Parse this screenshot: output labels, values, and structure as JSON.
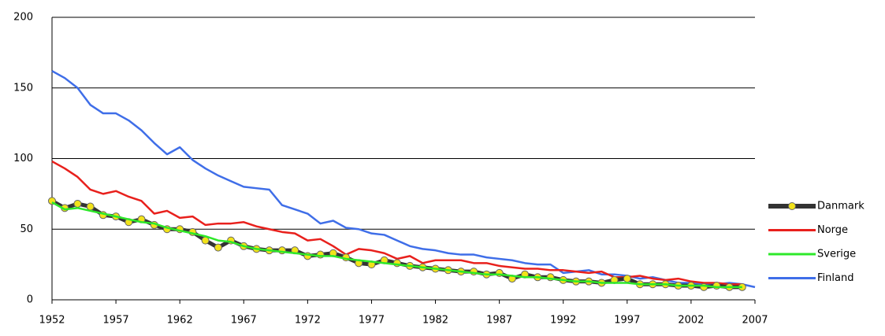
{
  "chart_data": {
    "type": "line",
    "x": [
      1952,
      1953,
      1954,
      1955,
      1956,
      1957,
      1958,
      1959,
      1960,
      1961,
      1962,
      1963,
      1964,
      1965,
      1966,
      1967,
      1968,
      1969,
      1970,
      1971,
      1972,
      1973,
      1974,
      1975,
      1976,
      1977,
      1978,
      1979,
      1980,
      1981,
      1982,
      1983,
      1984,
      1985,
      1986,
      1987,
      1988,
      1989,
      1990,
      1991,
      1992,
      1993,
      1994,
      1995,
      1996,
      1997,
      1998,
      1999,
      2000,
      2001,
      2002,
      2003,
      2004,
      2005,
      2006,
      2007
    ],
    "series": [
      {
        "name": "Finland",
        "color": "#3f6ee8",
        "values": [
          162,
          157,
          150,
          138,
          132,
          132,
          127,
          120,
          111,
          103,
          108,
          99,
          93,
          88,
          84,
          80,
          79,
          78,
          67,
          64,
          61,
          54,
          56,
          51,
          50,
          47,
          46,
          42,
          38,
          36,
          35,
          33,
          32,
          32,
          30,
          29,
          28,
          26,
          25,
          25,
          19,
          20,
          21,
          18,
          18,
          17,
          15,
          16,
          14,
          12,
          12,
          11,
          11,
          12,
          11,
          9
        ]
      },
      {
        "name": "Norge",
        "color": "#e8201c",
        "values": [
          98,
          93,
          87,
          78,
          75,
          77,
          73,
          70,
          61,
          63,
          58,
          59,
          53,
          54,
          54,
          55,
          52,
          50,
          48,
          47,
          42,
          43,
          38,
          32,
          36,
          35,
          33,
          29,
          31,
          26,
          28,
          28,
          28,
          26,
          26,
          24,
          23,
          22,
          22,
          21,
          21,
          20,
          19,
          20,
          16,
          16,
          17,
          15,
          14,
          15,
          13,
          12,
          12,
          11,
          11,
          null
        ]
      },
      {
        "name": "Danmark",
        "color": "#333333",
        "marker_color": "#f2e31a",
        "values": [
          70,
          65,
          68,
          66,
          60,
          59,
          55,
          57,
          53,
          50,
          50,
          48,
          42,
          37,
          42,
          38,
          36,
          35,
          35,
          35,
          31,
          32,
          33,
          30,
          26,
          25,
          28,
          26,
          24,
          23,
          22,
          21,
          20,
          20,
          18,
          19,
          15,
          18,
          16,
          16,
          14,
          13,
          13,
          12,
          14,
          15,
          11,
          11,
          11,
          10,
          10,
          9,
          10,
          9,
          9,
          null
        ]
      },
      {
        "name": "Sverige",
        "color": "#2ee82a",
        "values": [
          69,
          64,
          65,
          63,
          61,
          59,
          57,
          55,
          54,
          51,
          49,
          47,
          45,
          42,
          41,
          38,
          36,
          35,
          34,
          33,
          32,
          31,
          31,
          29,
          28,
          27,
          26,
          25,
          24,
          23,
          22,
          21,
          20,
          19,
          18,
          18,
          17,
          16,
          16,
          15,
          14,
          13,
          13,
          12,
          12,
          12,
          11,
          11,
          11,
          10,
          10,
          10,
          9,
          9,
          9,
          null
        ]
      }
    ],
    "legend_order": [
      "Danmark",
      "Norge",
      "Sverige",
      "Finland"
    ],
    "xlim": [
      1952,
      2007
    ],
    "xticks": [
      1952,
      1957,
      1962,
      1967,
      1972,
      1977,
      1982,
      1987,
      1992,
      1997,
      2002,
      2007
    ],
    "ylim": [
      0,
      200
    ],
    "yticks": [
      0,
      50,
      100,
      150,
      200
    ],
    "grid": true,
    "legend": "right"
  }
}
